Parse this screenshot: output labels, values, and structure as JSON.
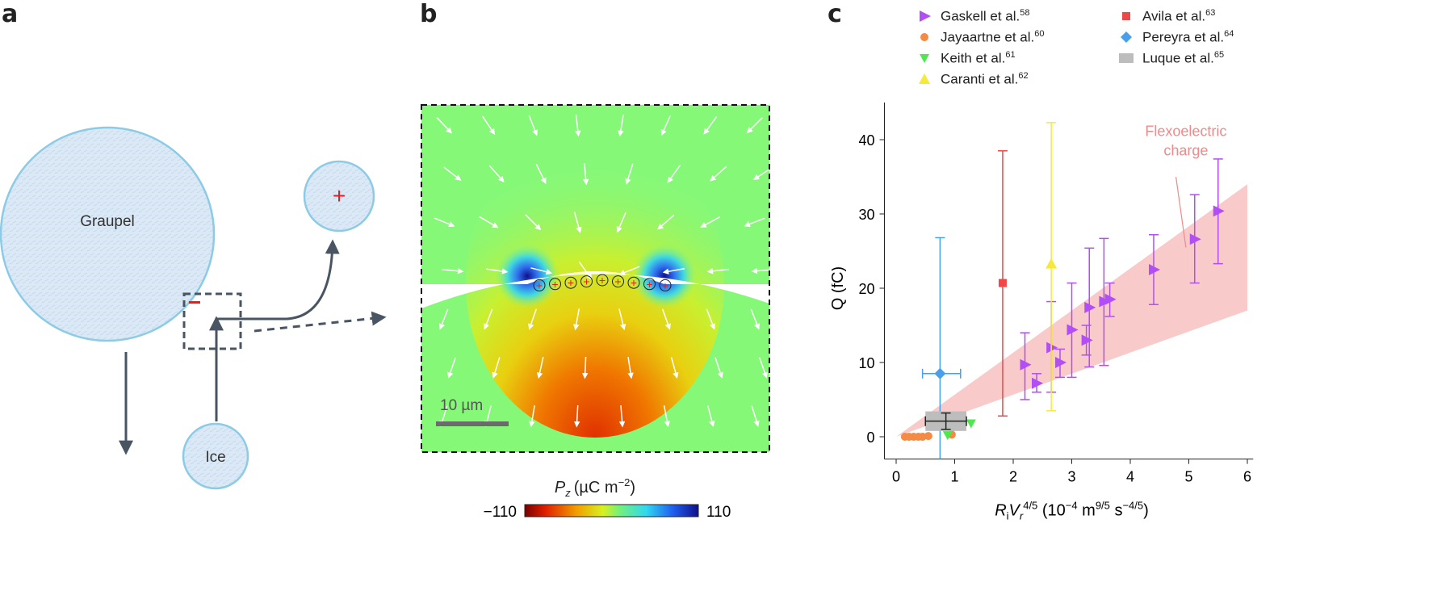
{
  "panel_labels": {
    "a": "a",
    "b": "b",
    "c": "c"
  },
  "panel_a": {
    "graupel_label": "Graupel",
    "ice_label": "Ice",
    "positive_sign": "+",
    "negative_sign": "−",
    "particle_fill": "#dbe8f5",
    "particle_stroke": "#8ccbe6",
    "arrow_color": "#4a5563"
  },
  "panel_b": {
    "scale_bar_label": "10 µm",
    "charge_symbol": "+",
    "colorbar_label_var": "P",
    "colorbar_label_sub": "z",
    "colorbar_label_unit": "(µC m",
    "colorbar_label_exp": "−2",
    "colorbar_label_close": ")",
    "colorbar_min": "−110",
    "colorbar_max": "110"
  },
  "chart_data": {
    "type": "scatter",
    "xlabel_parts": {
      "r": "R",
      "r_sub": "i",
      "v": "V",
      "v_sub": "r",
      "v_exp": "4/5",
      "unit": " (10",
      "e1": "−4",
      "m": " m",
      "e2": "9/5",
      "s": " s",
      "e3": "−4/5",
      "close": ")"
    },
    "ylabel": "Q (fC)",
    "xlim": [
      -0.2,
      6.1
    ],
    "ylim": [
      -3,
      45
    ],
    "xticks": [
      0,
      1,
      2,
      3,
      4,
      5,
      6
    ],
    "yticks": [
      0,
      10,
      20,
      30,
      40
    ],
    "annotation": [
      "Flexoelectric",
      "charge"
    ],
    "annotation_color": "#f08a8a",
    "band": {
      "x": [
        0,
        6
      ],
      "lower": [
        0,
        17
      ],
      "upper": [
        0,
        34
      ],
      "color": "#f9caca"
    },
    "legend_position": "top",
    "series": [
      {
        "name": "Gaskell et al.",
        "ref": "58",
        "marker": "triangle-right",
        "color": "#b14ef5",
        "points": [
          {
            "x": 2.2,
            "y": 9.7,
            "ylo": 5.0,
            "yhi": 14.0
          },
          {
            "x": 2.4,
            "y": 7.2,
            "ylo": 6.0,
            "yhi": 8.5
          },
          {
            "x": 2.65,
            "y": 12.0,
            "ylo": 6.0,
            "yhi": 18.2
          },
          {
            "x": 2.8,
            "y": 10.0,
            "ylo": 8.0,
            "yhi": 11.8
          },
          {
            "x": 3.0,
            "y": 14.4,
            "ylo": 8.0,
            "yhi": 20.7
          },
          {
            "x": 3.25,
            "y": 13.0,
            "ylo": 11.0,
            "yhi": 15.0
          },
          {
            "x": 3.3,
            "y": 17.4,
            "ylo": 9.4,
            "yhi": 25.4
          },
          {
            "x": 3.55,
            "y": 18.2,
            "ylo": 9.6,
            "yhi": 26.7
          },
          {
            "x": 3.65,
            "y": 18.5,
            "ylo": 16.2,
            "yhi": 20.7
          },
          {
            "x": 4.4,
            "y": 22.5,
            "ylo": 17.8,
            "yhi": 27.2
          },
          {
            "x": 5.1,
            "y": 26.6,
            "ylo": 20.7,
            "yhi": 32.6
          },
          {
            "x": 5.5,
            "y": 30.4,
            "ylo": 23.3,
            "yhi": 37.4
          }
        ]
      },
      {
        "name": "Jayaartne et al.",
        "ref": "60",
        "marker": "circle",
        "color": "#f58a45",
        "points": [
          {
            "x": 0.15,
            "y": 0.0
          },
          {
            "x": 0.22,
            "y": 0.0
          },
          {
            "x": 0.3,
            "y": 0.0
          },
          {
            "x": 0.38,
            "y": 0.0
          },
          {
            "x": 0.45,
            "y": 0.0
          },
          {
            "x": 0.55,
            "y": 0.1
          },
          {
            "x": 0.95,
            "y": 0.3
          }
        ]
      },
      {
        "name": "Keith et al.",
        "ref": "61",
        "marker": "triangle-down",
        "color": "#4de84d",
        "points": [
          {
            "x": 0.88,
            "y": 0.2
          },
          {
            "x": 1.15,
            "y": 1.8
          },
          {
            "x": 1.28,
            "y": 1.8
          }
        ]
      },
      {
        "name": "Caranti et al.",
        "ref": "62",
        "marker": "triangle-up",
        "color": "#f5ea3b",
        "points": [
          {
            "x": 2.65,
            "y": 23.3,
            "ylo": 3.5,
            "yhi": 42.3
          }
        ]
      },
      {
        "name": "Avila et al.",
        "ref": "63",
        "marker": "square",
        "color": "#f04848",
        "points": [
          {
            "x": 1.82,
            "y": 20.7,
            "ylo": 2.8,
            "yhi": 38.5
          }
        ]
      },
      {
        "name": "Pereyra et al.",
        "ref": "64",
        "marker": "diamond",
        "color": "#4a9fea",
        "points": [
          {
            "x": 0.75,
            "y": 8.5,
            "ylo": -3,
            "yhi": 26.8,
            "xlo": 0.45,
            "xhi": 1.1
          }
        ]
      },
      {
        "name": "Luque et al.",
        "ref": "65",
        "marker": "box",
        "color": "#bdbdbd",
        "points": [
          {
            "x": 0.85,
            "y": 2.1,
            "ylo": 1.0,
            "yhi": 3.2,
            "xlo": 0.5,
            "xhi": 1.2
          }
        ]
      }
    ]
  }
}
